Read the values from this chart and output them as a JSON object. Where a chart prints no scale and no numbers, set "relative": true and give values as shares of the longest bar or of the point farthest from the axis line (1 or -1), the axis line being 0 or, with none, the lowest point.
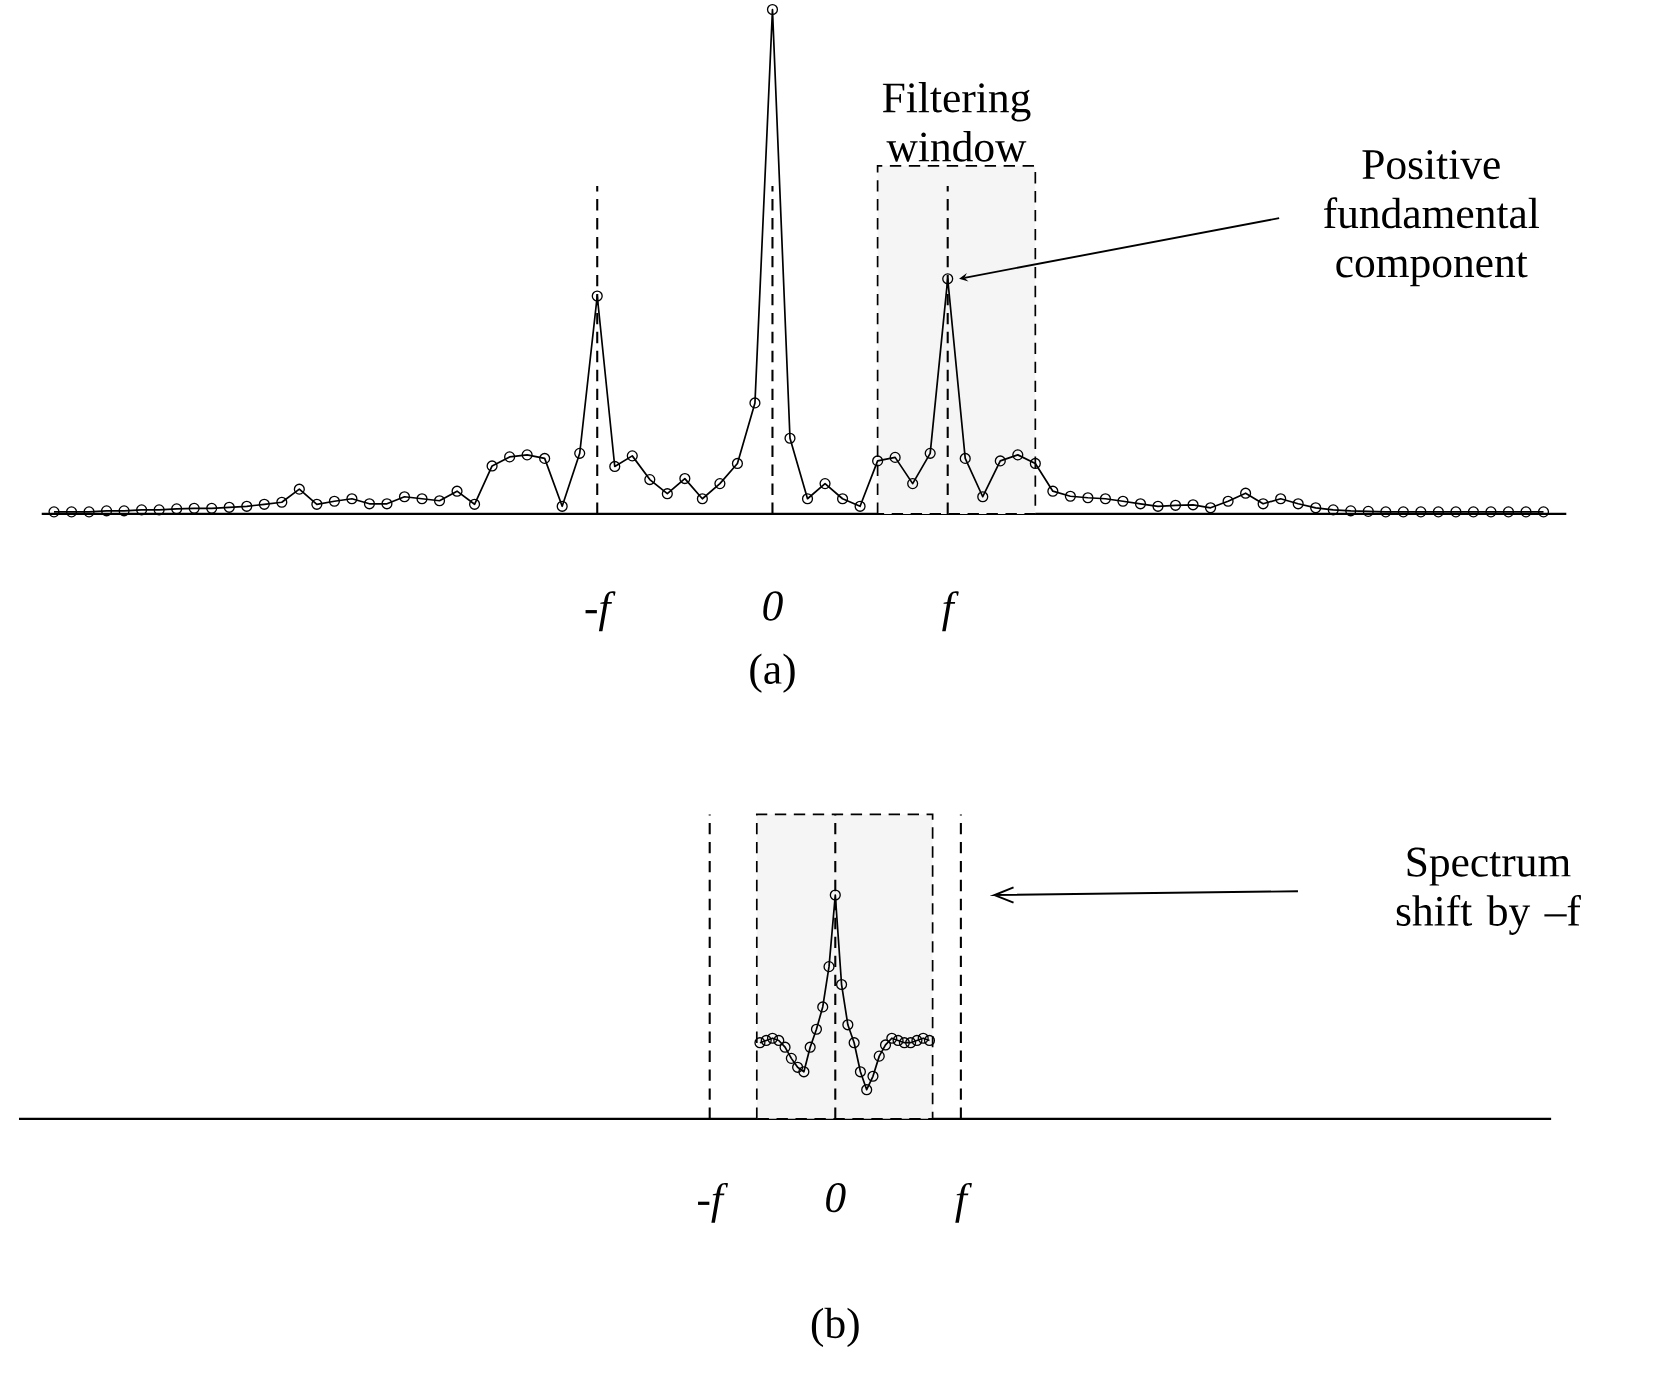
{
  "chart_data": [
    {
      "type": "line",
      "title": "(a)",
      "relative": true,
      "color": "#000000",
      "marker": "circle",
      "line_style": "solid",
      "categories": [
        null,
        null,
        null,
        null,
        null,
        null,
        null,
        null,
        null,
        null,
        null,
        null,
        null,
        null,
        null,
        null,
        null,
        null,
        null,
        null,
        null,
        null,
        null,
        null,
        null,
        null,
        null,
        null,
        null,
        null,
        null,
        "-f",
        null,
        null,
        null,
        null,
        null,
        null,
        null,
        null,
        null,
        "0",
        null,
        null,
        null,
        null,
        null,
        null,
        null,
        null,
        null,
        "f",
        null,
        null,
        null,
        null,
        null,
        null,
        null,
        null,
        null,
        null,
        null,
        null,
        null,
        null,
        null,
        null,
        null,
        null,
        null,
        null,
        null,
        null,
        null,
        null,
        null,
        null,
        null,
        null,
        null,
        null,
        null,
        null,
        null,
        null
      ],
      "values": [
        0.004,
        0.004,
        0.004,
        0.006,
        0.006,
        0.008,
        0.008,
        0.01,
        0.011,
        0.011,
        0.013,
        0.015,
        0.019,
        0.023,
        0.049,
        0.019,
        0.025,
        0.03,
        0.02,
        0.02,
        0.034,
        0.03,
        0.026,
        0.045,
        0.019,
        0.095,
        0.113,
        0.117,
        0.11,
        0.015,
        0.12,
        0.432,
        0.094,
        0.115,
        0.068,
        0.04,
        0.07,
        0.03,
        0.06,
        0.1,
        0.22,
        1,
        0.15,
        0.03,
        0.06,
        0.03,
        0.015,
        0.105,
        0.112,
        0.06,
        0.12,
        0.466,
        0.11,
        0.034,
        0.105,
        0.117,
        0.1,
        0.045,
        0.035,
        0.032,
        0.03,
        0.025,
        0.02,
        0.015,
        0.017,
        0.018,
        0.012,
        0.025,
        0.041,
        0.02,
        0.03,
        0.02,
        0.012,
        0.008,
        0.006,
        0.005,
        0.004,
        0.004,
        0.004,
        0.004,
        0.004,
        0.004,
        0.004,
        0.004,
        0.004,
        0.004
      ],
      "ref_lines": [
        {
          "axis": "x",
          "value": "-f",
          "line_style": "dashed"
        },
        {
          "axis": "x",
          "value": "0",
          "line_style": "dashed"
        },
        {
          "axis": "x",
          "value": "f",
          "line_style": "dashed"
        }
      ],
      "annotations": [
        {
          "text": "Positive fundamental component",
          "x": "f",
          "y": 0.466
        },
        "Filtering window"
      ]
    },
    {
      "type": "line",
      "title": "(b)",
      "relative": true,
      "color": "#000000",
      "marker": "circle",
      "line_style": "solid",
      "categories": [
        null,
        "-f",
        null,
        null,
        null,
        null,
        null,
        null,
        null,
        null,
        null,
        null,
        null,
        null,
        null,
        null,
        null,
        null,
        null,
        null,
        null,
        "0",
        null,
        null,
        null,
        null,
        null,
        null,
        null,
        null,
        null,
        null,
        null,
        null,
        null,
        null,
        null,
        null,
        null,
        null,
        null,
        "f",
        null
      ],
      "values": [
        null,
        null,
        null,
        null,
        null,
        null,
        null,
        null,
        null,
        0.34,
        0.35,
        0.36,
        0.35,
        0.32,
        0.27,
        0.23,
        0.21,
        0.32,
        0.4,
        0.5,
        0.68,
        1,
        0.6,
        0.42,
        0.34,
        0.21,
        0.13,
        0.19,
        0.28,
        0.33,
        0.36,
        0.35,
        0.34,
        0.34,
        0.35,
        0.36,
        0.35,
        null,
        null,
        null,
        null,
        null,
        null
      ],
      "ref_lines": [
        {
          "axis": "x",
          "value": "-f",
          "line_style": "dashed"
        },
        {
          "axis": "x",
          "value": "0",
          "line_style": "dashed"
        },
        {
          "axis": "x",
          "value": "f",
          "line_style": "dashed"
        }
      ],
      "annotations": [
        "Spectrum shift by –f"
      ]
    }
  ]
}
